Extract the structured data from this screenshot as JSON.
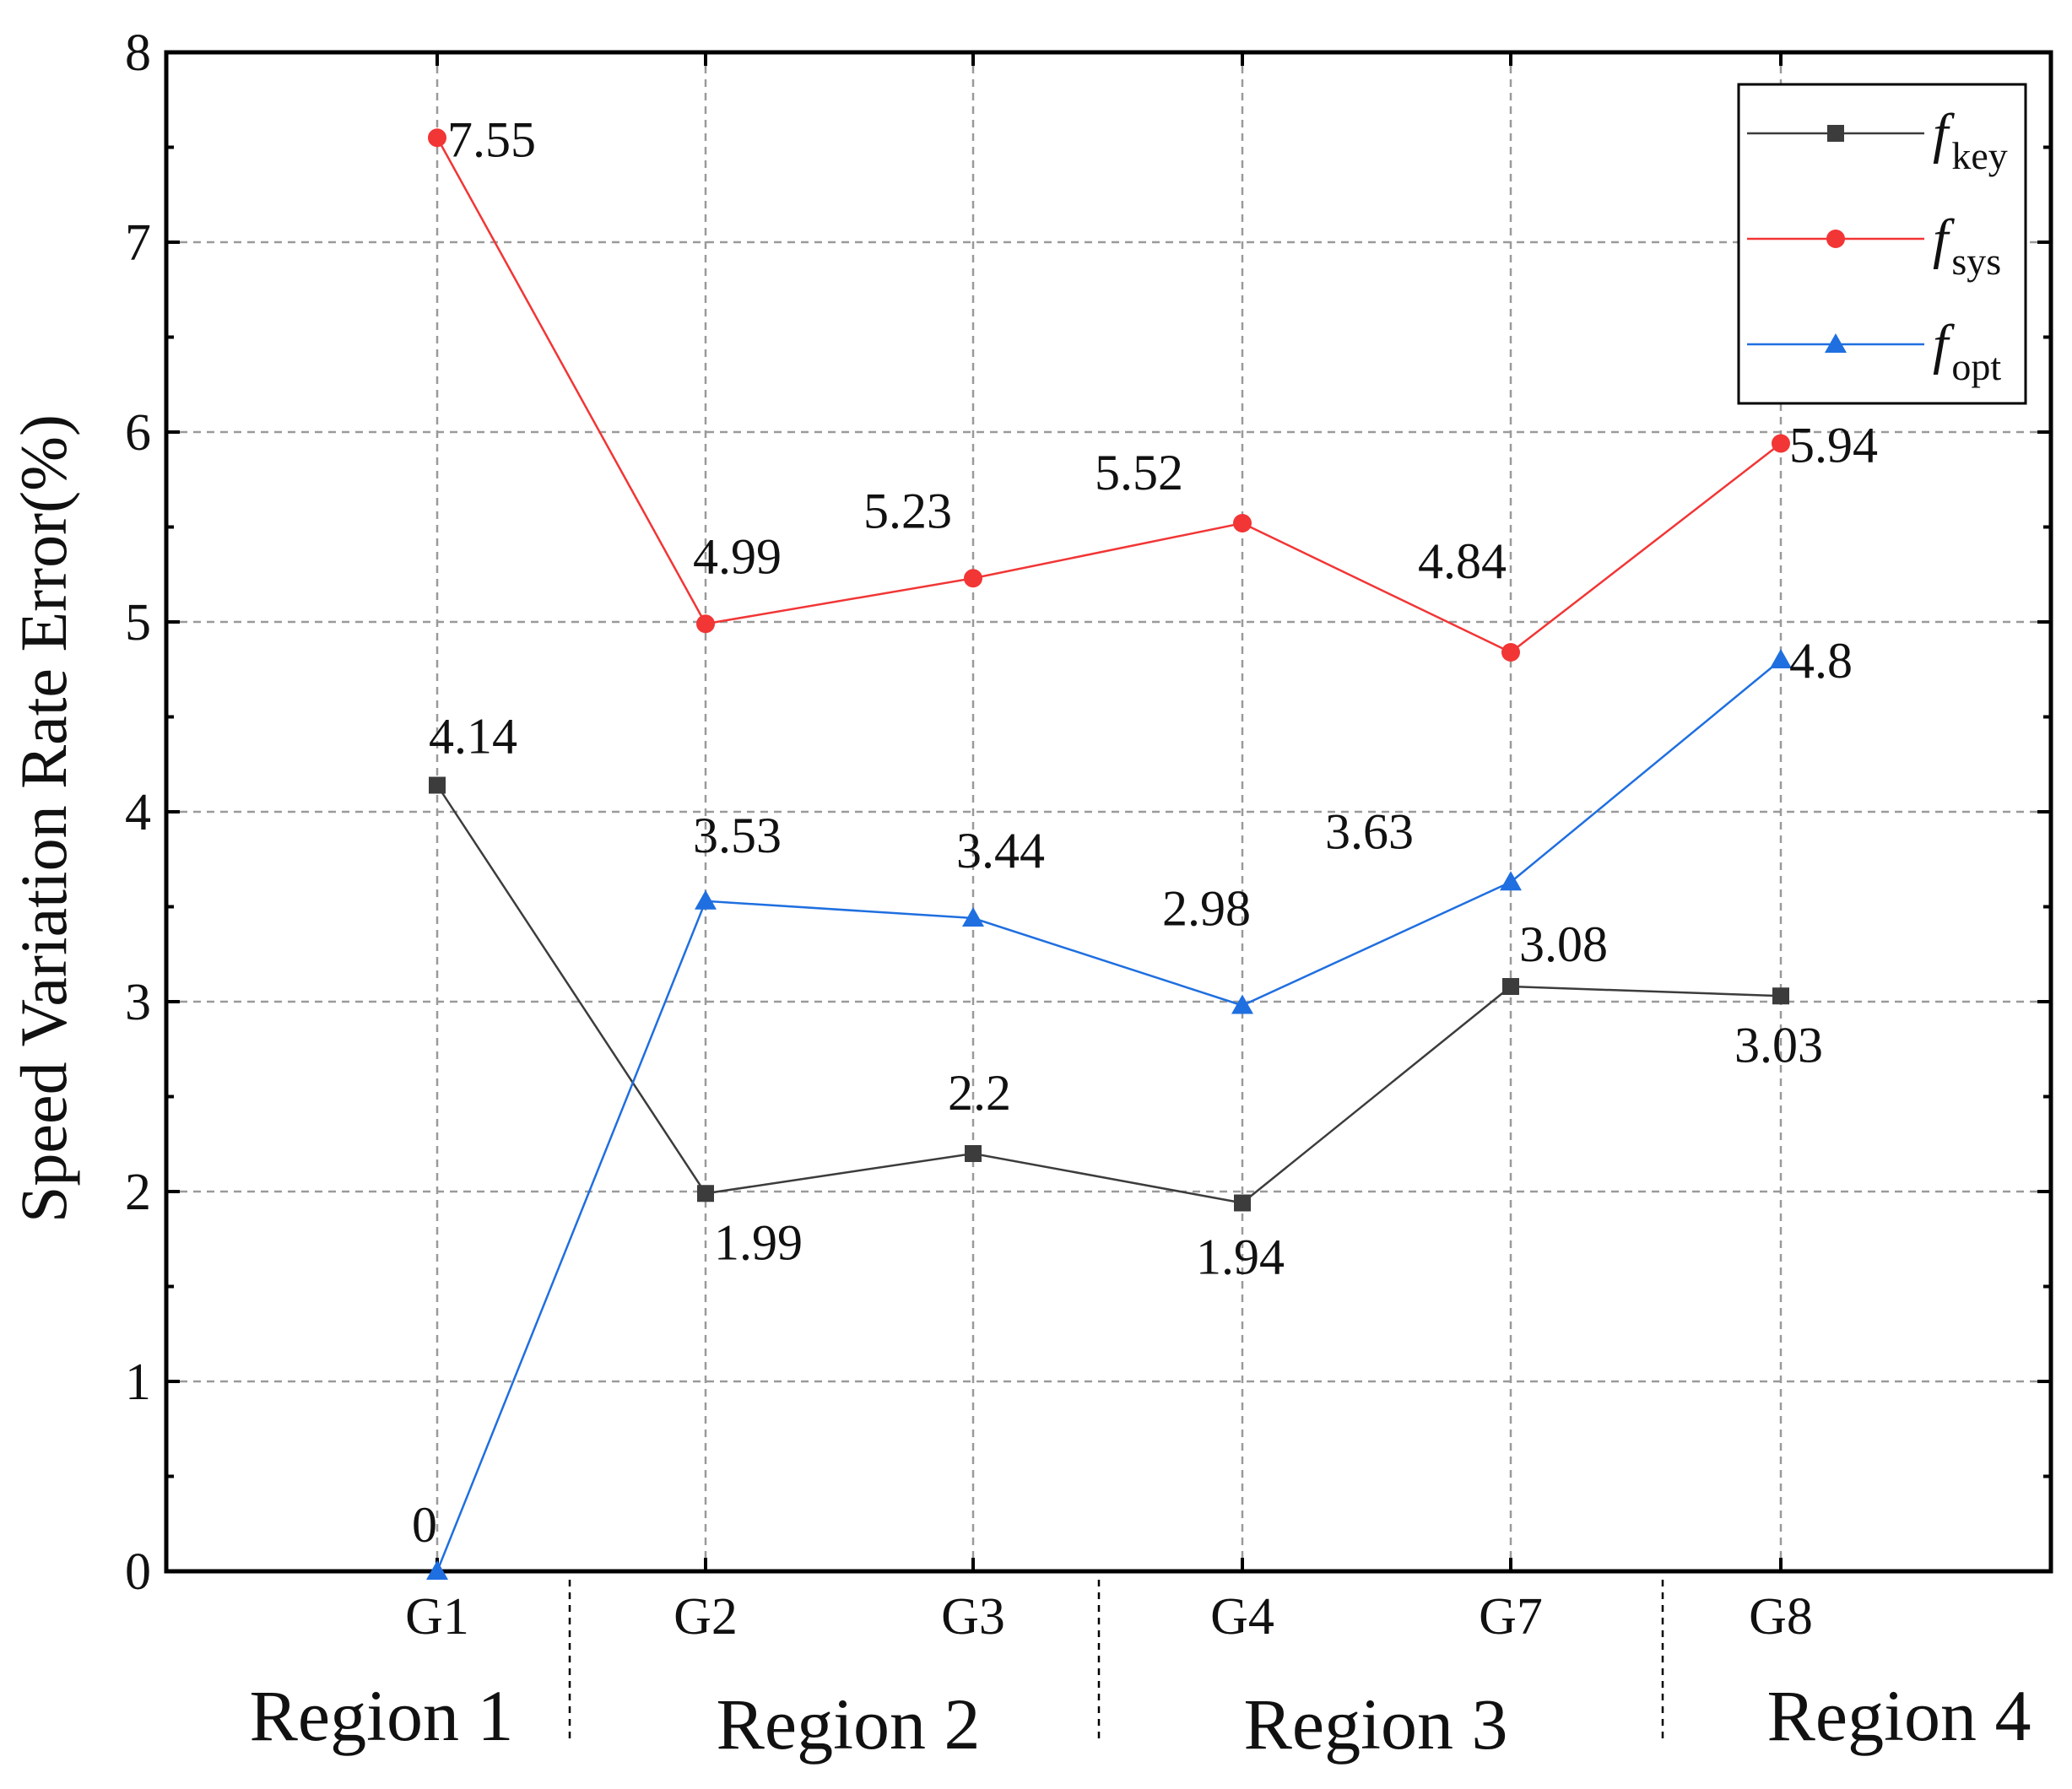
{
  "chart_data": {
    "type": "line",
    "title": "",
    "xlabel": "",
    "ylabel": "Speed Variation Rate Error(%)",
    "categories": [
      "G1",
      "G2",
      "G3",
      "G4",
      "G7",
      "G8"
    ],
    "regions": [
      "Region 1",
      "Region 2",
      "Region 3",
      "Region 4"
    ],
    "ylim": [
      0,
      8
    ],
    "yticks": [
      "0",
      "1",
      "2",
      "3",
      "4",
      "5",
      "6",
      "7",
      "8"
    ],
    "grid": true,
    "legend_position": "top-right",
    "series": [
      {
        "name": "f_key",
        "legend_symbol": "f",
        "legend_subscript": "key",
        "color": "#3c3c3c",
        "marker": "square",
        "values": [
          4.14,
          1.99,
          2.2,
          1.94,
          3.08,
          3.03
        ],
        "labels": [
          "4.14",
          "1.99",
          "2.2",
          "1.94",
          "3.08",
          "3.03"
        ]
      },
      {
        "name": "f_sys",
        "legend_symbol": "f",
        "legend_subscript": "sys",
        "color": "#f23535",
        "marker": "circle",
        "values": [
          7.55,
          4.99,
          5.23,
          5.52,
          4.84,
          5.94
        ],
        "labels": [
          "7.55",
          "4.99",
          "5.23",
          "5.52",
          "4.84",
          "5.94"
        ]
      },
      {
        "name": "f_opt",
        "legend_symbol": "f",
        "legend_subscript": "opt",
        "color": "#1f6fe0",
        "marker": "triangle",
        "values": [
          0,
          3.53,
          3.44,
          2.98,
          3.63,
          4.8
        ],
        "labels": [
          "0",
          "3.53",
          "3.44",
          "2.98",
          "3.63",
          "4.8"
        ]
      }
    ]
  }
}
